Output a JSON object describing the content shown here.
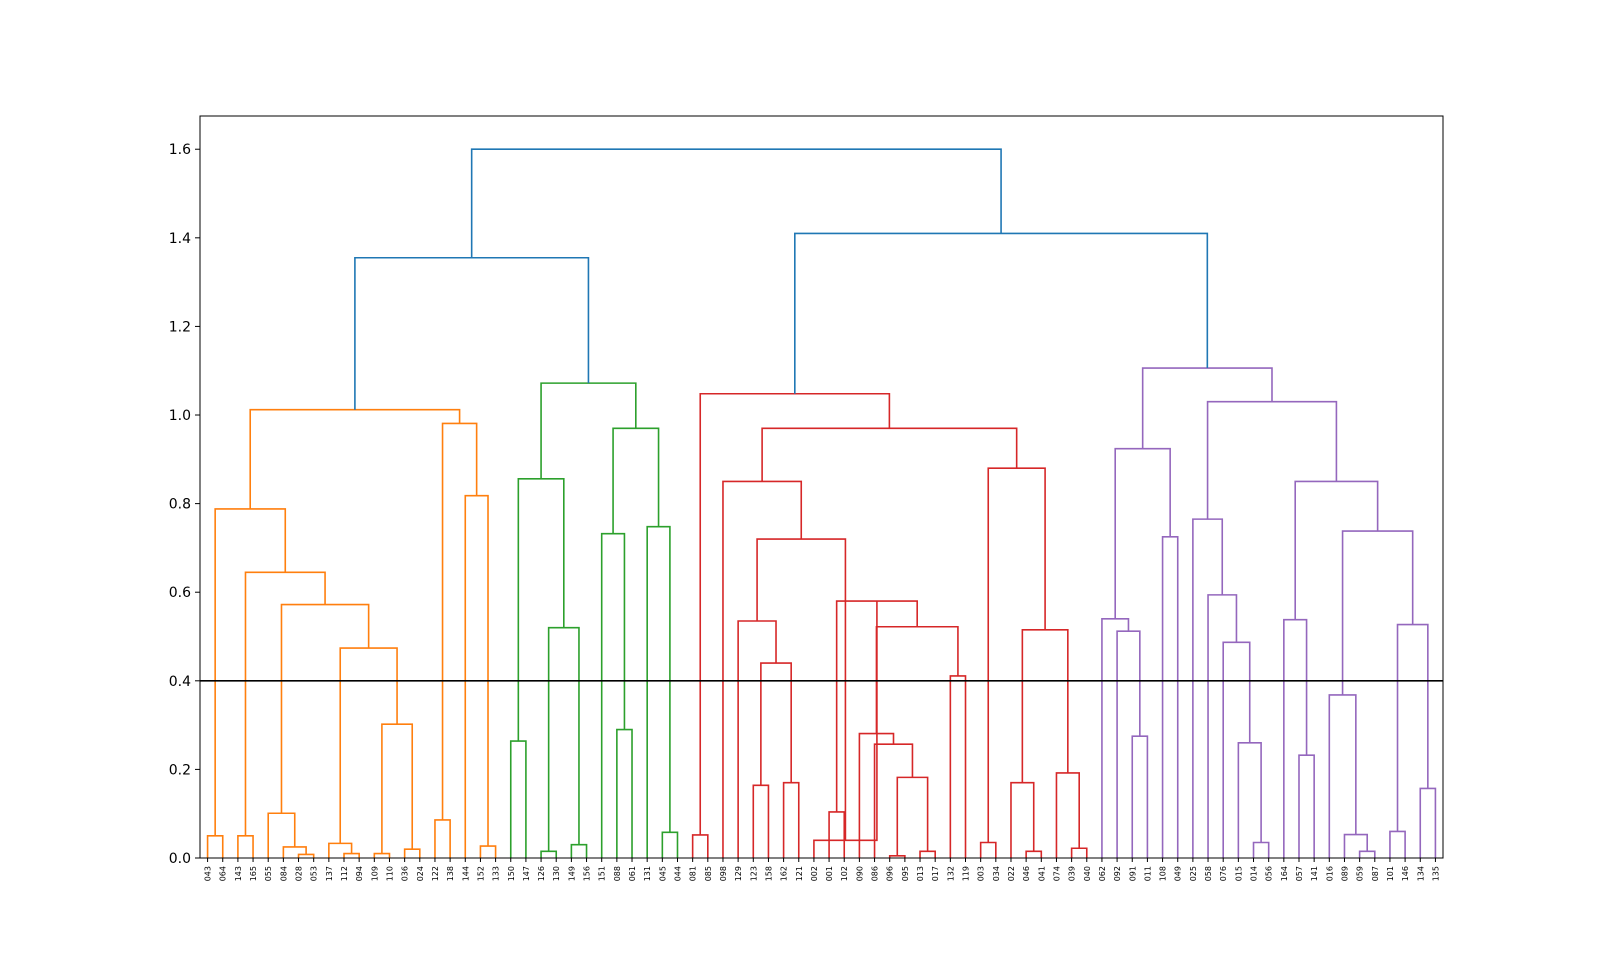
{
  "chart_data": {
    "type": "dendrogram",
    "title": "",
    "xlabel": "",
    "ylabel": "",
    "ylim": [
      0,
      1.675
    ],
    "yticks": [
      0.0,
      0.2,
      0.4,
      0.6,
      0.8,
      1.0,
      1.2,
      1.4,
      1.6
    ],
    "ytick_labels": [
      "0.0",
      "0.2",
      "0.4",
      "0.6",
      "0.8",
      "1.0",
      "1.2",
      "1.4",
      "1.6"
    ],
    "threshold": 0.4,
    "grid": false,
    "colors": {
      "orange": "#ff7f0e",
      "green": "#2ca02c",
      "red": "#d62728",
      "purple": "#9467bd",
      "blue": "#1f77b4",
      "threshold": "#000000"
    },
    "leaves": [
      "043",
      "064",
      "143",
      "165",
      "055",
      "084",
      "028",
      "053",
      "137",
      "112",
      "094",
      "109",
      "110",
      "036",
      "024",
      "122",
      "138",
      "144",
      "152",
      "133",
      "150",
      "147",
      "126",
      "130",
      "149",
      "156",
      "151",
      "088",
      "061",
      "131",
      "045",
      "044",
      "081",
      "085",
      "098",
      "129",
      "123",
      "158",
      "162",
      "121",
      "002",
      "001",
      "102",
      "090",
      "086",
      "096",
      "095",
      "013",
      "017",
      "132",
      "119",
      "003",
      "034",
      "022",
      "046",
      "041",
      "074",
      "039",
      "040",
      "062",
      "092",
      "091",
      "011",
      "108",
      "049",
      "025",
      "058",
      "076",
      "015",
      "014",
      "056",
      "164",
      "057",
      "141",
      "016",
      "089",
      "059",
      "087",
      "101",
      "146",
      "134",
      "135"
    ],
    "merges": [
      {
        "a": "L0",
        "b": "L1",
        "h": 0.05,
        "c": "orange"
      },
      {
        "a": "L2",
        "b": "L3",
        "h": 0.05,
        "c": "orange"
      },
      {
        "a": "L6",
        "b": "L7",
        "h": 0.008,
        "c": "orange"
      },
      {
        "a": "L5",
        "b": "m2",
        "h": 0.025,
        "c": "orange"
      },
      {
        "a": "L4",
        "b": "m3",
        "h": 0.101,
        "c": "orange"
      },
      {
        "a": "L9",
        "b": "L10",
        "h": 0.01,
        "c": "orange"
      },
      {
        "a": "L8",
        "b": "m5",
        "h": 0.033,
        "c": "orange"
      },
      {
        "a": "L11",
        "b": "L12",
        "h": 0.01,
        "c": "orange"
      },
      {
        "a": "L13",
        "b": "L14",
        "h": 0.02,
        "c": "orange"
      },
      {
        "a": "m7",
        "b": "m8",
        "h": 0.302,
        "c": "orange"
      },
      {
        "a": "m6",
        "b": "m9",
        "h": 0.474,
        "c": "orange"
      },
      {
        "a": "m4",
        "b": "m10",
        "h": 0.572,
        "c": "orange"
      },
      {
        "a": "m1",
        "b": "m11",
        "h": 0.645,
        "c": "orange"
      },
      {
        "a": "m0",
        "b": "m12",
        "h": 0.788,
        "c": "orange"
      },
      {
        "a": "L15",
        "b": "L16",
        "h": 0.086,
        "c": "orange"
      },
      {
        "a": "L18",
        "b": "L19",
        "h": 0.027,
        "c": "orange"
      },
      {
        "a": "L17",
        "b": "m15",
        "h": 0.818,
        "c": "orange"
      },
      {
        "a": "m14",
        "b": "m16",
        "h": 0.981,
        "c": "orange"
      },
      {
        "a": "m13",
        "b": "m17",
        "h": 1.012,
        "c": "orange"
      },
      {
        "a": "L20",
        "b": "L21",
        "h": 0.264,
        "c": "green"
      },
      {
        "a": "L22",
        "b": "L23",
        "h": 0.015,
        "c": "green"
      },
      {
        "a": "L24",
        "b": "L25",
        "h": 0.03,
        "c": "green"
      },
      {
        "a": "m20",
        "b": "m21",
        "h": 0.52,
        "c": "green"
      },
      {
        "a": "m19",
        "b": "m22",
        "h": 0.856,
        "c": "green"
      },
      {
        "a": "L27",
        "b": "L28",
        "h": 0.29,
        "c": "green"
      },
      {
        "a": "L26",
        "b": "m24",
        "h": 0.732,
        "c": "green"
      },
      {
        "a": "L30",
        "b": "L31",
        "h": 0.058,
        "c": "green"
      },
      {
        "a": "L29",
        "b": "m26",
        "h": 0.748,
        "c": "green"
      },
      {
        "a": "m25",
        "b": "m27",
        "h": 0.97,
        "c": "green"
      },
      {
        "a": "m23",
        "b": "m28",
        "h": 1.072,
        "c": "green"
      },
      {
        "a": "L32",
        "b": "L33",
        "h": 0.052,
        "c": "red"
      },
      {
        "a": "L36",
        "b": "L37",
        "h": 0.164,
        "c": "red"
      },
      {
        "a": "L38",
        "b": "L39",
        "h": 0.17,
        "c": "red"
      },
      {
        "a": "m31",
        "b": "m32",
        "h": 0.44,
        "c": "red"
      },
      {
        "a": "L35",
        "b": "m33",
        "h": 0.535,
        "c": "red"
      },
      {
        "a": "L41",
        "b": "L42",
        "h": 0.104,
        "c": "red"
      },
      {
        "a": "L45",
        "b": "L46",
        "h": 0.005,
        "c": "red"
      },
      {
        "a": "L47",
        "b": "L48",
        "h": 0.015,
        "c": "red"
      },
      {
        "a": "m36",
        "b": "m37",
        "h": 0.182,
        "c": "red"
      },
      {
        "a": "L44",
        "b": "m38",
        "h": 0.257,
        "c": "red"
      },
      {
        "a": "L43",
        "b": "m39",
        "h": 0.281,
        "c": "red"
      },
      {
        "a": "L49",
        "b": "L50",
        "h": 0.411,
        "c": "red"
      },
      {
        "a": "m40",
        "b": "m41",
        "h": 0.522,
        "c": "red"
      },
      {
        "a": "m35",
        "b": "m42",
        "h": 0.58,
        "c": "red"
      },
      {
        "a": "L40",
        "b": "m43",
        "h": 0.04,
        "c": "red"
      },
      {
        "a": "m34",
        "b": "m44",
        "h": 0.72,
        "c": "red"
      },
      {
        "a": "L34",
        "b": "m45",
        "h": 0.85,
        "c": "red"
      },
      {
        "a": "L51",
        "b": "L52",
        "h": 0.035,
        "c": "red"
      },
      {
        "a": "L54",
        "b": "L55",
        "h": 0.015,
        "c": "red"
      },
      {
        "a": "L53",
        "b": "m48",
        "h": 0.17,
        "c": "red"
      },
      {
        "a": "L57",
        "b": "L58",
        "h": 0.022,
        "c": "red"
      },
      {
        "a": "L56",
        "b": "m50",
        "h": 0.192,
        "c": "red"
      },
      {
        "a": "m49",
        "b": "m51",
        "h": 0.515,
        "c": "red"
      },
      {
        "a": "m47",
        "b": "m52",
        "h": 0.88,
        "c": "red"
      },
      {
        "a": "m46",
        "b": "m53",
        "h": 0.97,
        "c": "red"
      },
      {
        "a": "m30",
        "b": "m54",
        "h": 1.048,
        "c": "red"
      },
      {
        "a": "L61",
        "b": "L62",
        "h": 0.275,
        "c": "purple"
      },
      {
        "a": "L60",
        "b": "m56",
        "h": 0.512,
        "c": "purple"
      },
      {
        "a": "L59",
        "b": "m57",
        "h": 0.54,
        "c": "purple"
      },
      {
        "a": "L63",
        "b": "L64",
        "h": 0.725,
        "c": "purple"
      },
      {
        "a": "m58",
        "b": "m59",
        "h": 0.924,
        "c": "purple"
      },
      {
        "a": "L69",
        "b": "L70",
        "h": 0.035,
        "c": "purple"
      },
      {
        "a": "L68",
        "b": "m61",
        "h": 0.26,
        "c": "purple"
      },
      {
        "a": "L67",
        "b": "m62",
        "h": 0.487,
        "c": "purple"
      },
      {
        "a": "L66",
        "b": "m63",
        "h": 0.594,
        "c": "purple"
      },
      {
        "a": "L65",
        "b": "m64",
        "h": 0.765,
        "c": "purple"
      },
      {
        "a": "L72",
        "b": "L73",
        "h": 0.232,
        "c": "purple"
      },
      {
        "a": "L71",
        "b": "m66",
        "h": 0.538,
        "c": "purple"
      },
      {
        "a": "L76",
        "b": "L77",
        "h": 0.015,
        "c": "purple"
      },
      {
        "a": "L75",
        "b": "m68",
        "h": 0.053,
        "c": "purple"
      },
      {
        "a": "L74",
        "b": "m69",
        "h": 0.368,
        "c": "purple"
      },
      {
        "a": "L78",
        "b": "L79",
        "h": 0.06,
        "c": "purple"
      },
      {
        "a": "L80",
        "b": "L81",
        "h": 0.157,
        "c": "purple"
      },
      {
        "a": "m71",
        "b": "m72",
        "h": 0.527,
        "c": "purple"
      },
      {
        "a": "m70",
        "b": "m73",
        "h": 0.738,
        "c": "purple"
      },
      {
        "a": "m67",
        "b": "m74",
        "h": 0.85,
        "c": "purple"
      },
      {
        "a": "m65",
        "b": "m75",
        "h": 1.03,
        "c": "purple"
      },
      {
        "a": "m60",
        "b": "m76",
        "h": 1.106,
        "c": "purple"
      },
      {
        "a": "m18",
        "b": "m29",
        "h": 1.355,
        "c": "blue"
      },
      {
        "a": "m55",
        "b": "m77",
        "h": 1.41,
        "c": "blue"
      },
      {
        "a": "m78",
        "b": "m79",
        "h": 1.6,
        "c": "blue"
      }
    ]
  }
}
